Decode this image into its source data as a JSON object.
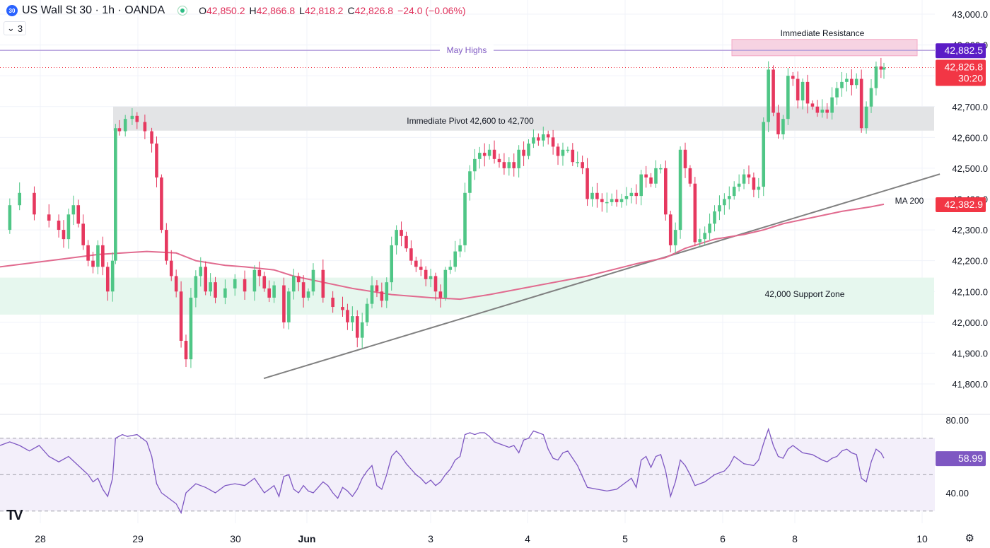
{
  "header": {
    "symbol_badge": "30",
    "title": "US Wall St 30 · 1h · OANDA",
    "open_label": "O",
    "open": "42,850.2",
    "high_label": "H",
    "high": "42,866.8",
    "low_label": "L",
    "low": "42,818.2",
    "close_label": "C",
    "close": "42,826.8",
    "change": "−24.0 (−0.06%)",
    "indicator_count": "3"
  },
  "colors": {
    "up": "#4fc686",
    "down": "#e6385f",
    "ma": "#e16b8f",
    "rsi": "#7e57c2",
    "support_zone": "#e6f7ee",
    "pivot_zone": "#e3e4e6",
    "resistance_zone": "#f7d3e2",
    "trendline": "#808080",
    "price_badge": "#f23645",
    "may_high_badge": "#5b1cc6",
    "rsi_badge": "#7e57c2"
  },
  "chart_data": {
    "type": "candlestick",
    "symbol": "US Wall St 30",
    "interval": "1h",
    "y_axis": {
      "min": 41700,
      "max": 43000,
      "tick_labels": [
        "43,000.0",
        "42,900.0",
        "42,700.0",
        "42,600.0",
        "42,500.0",
        "42,400.0",
        "42,300.0",
        "42,200.0",
        "42,100.0",
        "42,000.0",
        "41,900.0",
        "41,800.0"
      ]
    },
    "x_axis": {
      "tick_labels": [
        "28",
        "29",
        "30",
        "Jun",
        "3",
        "4",
        "5",
        "6",
        "8",
        "10"
      ]
    },
    "zones": [
      {
        "label": "Immediate Resistance",
        "from": 42865,
        "to": 42918
      },
      {
        "label": "Immediate Pivot 42,600 to 42,700",
        "from": 42622,
        "to": 42700
      },
      {
        "label": "42,000 Support Zone",
        "from": 42025,
        "to": 42145
      }
    ],
    "lines": [
      {
        "label": "May Highs",
        "value": 42882.5,
        "badge": "42,882.5"
      },
      {
        "label": "MA 200",
        "badge": "42,382.9"
      }
    ],
    "last_price": {
      "value": 42826.8,
      "badge": "42,826.8",
      "countdown": "30:20"
    },
    "trendline": {
      "from": [
        0.265,
        41818
      ],
      "to": [
        0.944,
        42481
      ]
    },
    "close_path": [
      [
        0.0,
        42300
      ],
      [
        0.01,
        42380
      ],
      [
        0.02,
        42420
      ],
      [
        0.035,
        42350
      ],
      [
        0.05,
        42330
      ],
      [
        0.06,
        42300
      ],
      [
        0.065,
        42270
      ],
      [
        0.07,
        42350
      ],
      [
        0.075,
        42380
      ],
      [
        0.08,
        42320
      ],
      [
        0.085,
        42250
      ],
      [
        0.09,
        42200
      ],
      [
        0.095,
        42180
      ],
      [
        0.1,
        42250
      ],
      [
        0.105,
        42180
      ],
      [
        0.11,
        42100
      ],
      [
        0.115,
        42200
      ],
      [
        0.118,
        42630
      ],
      [
        0.122,
        42620
      ],
      [
        0.128,
        42660
      ],
      [
        0.135,
        42670
      ],
      [
        0.14,
        42650
      ],
      [
        0.148,
        42620
      ],
      [
        0.155,
        42580
      ],
      [
        0.16,
        42470
      ],
      [
        0.165,
        42300
      ],
      [
        0.17,
        42200
      ],
      [
        0.175,
        42150
      ],
      [
        0.18,
        42100
      ],
      [
        0.185,
        41940
      ],
      [
        0.19,
        41880
      ],
      [
        0.195,
        42080
      ],
      [
        0.2,
        42150
      ],
      [
        0.205,
        42180
      ],
      [
        0.21,
        42100
      ],
      [
        0.215,
        42130
      ],
      [
        0.22,
        42080
      ],
      [
        0.23,
        42110
      ],
      [
        0.24,
        42140
      ],
      [
        0.25,
        42100
      ],
      [
        0.26,
        42170
      ],
      [
        0.265,
        42150
      ],
      [
        0.27,
        42110
      ],
      [
        0.275,
        42080
      ],
      [
        0.28,
        42120
      ],
      [
        0.29,
        42000
      ],
      [
        0.295,
        42100
      ],
      [
        0.3,
        42150
      ],
      [
        0.305,
        42130
      ],
      [
        0.31,
        42080
      ],
      [
        0.315,
        42100
      ],
      [
        0.32,
        42170
      ],
      [
        0.33,
        42080
      ],
      [
        0.34,
        42050
      ],
      [
        0.35,
        42040
      ],
      [
        0.355,
        42000
      ],
      [
        0.36,
        42020
      ],
      [
        0.365,
        41950
      ],
      [
        0.37,
        42000
      ],
      [
        0.375,
        42060
      ],
      [
        0.38,
        42120
      ],
      [
        0.385,
        42100
      ],
      [
        0.39,
        42070
      ],
      [
        0.395,
        42130
      ],
      [
        0.4,
        42250
      ],
      [
        0.405,
        42300
      ],
      [
        0.41,
        42280
      ],
      [
        0.415,
        42240
      ],
      [
        0.42,
        42200
      ],
      [
        0.425,
        42180
      ],
      [
        0.43,
        42170
      ],
      [
        0.435,
        42140
      ],
      [
        0.44,
        42150
      ],
      [
        0.445,
        42100
      ],
      [
        0.45,
        42080
      ],
      [
        0.455,
        42170
      ],
      [
        0.46,
        42180
      ],
      [
        0.465,
        42230
      ],
      [
        0.47,
        42250
      ],
      [
        0.475,
        42420
      ],
      [
        0.48,
        42490
      ],
      [
        0.485,
        42530
      ],
      [
        0.49,
        42550
      ],
      [
        0.495,
        42540
      ],
      [
        0.5,
        42560
      ],
      [
        0.505,
        42530
      ],
      [
        0.51,
        42520
      ],
      [
        0.515,
        42500
      ],
      [
        0.52,
        42520
      ],
      [
        0.525,
        42500
      ],
      [
        0.53,
        42560
      ],
      [
        0.535,
        42540
      ],
      [
        0.54,
        42580
      ],
      [
        0.545,
        42600
      ],
      [
        0.55,
        42590
      ],
      [
        0.555,
        42610
      ],
      [
        0.56,
        42600
      ],
      [
        0.565,
        42570
      ],
      [
        0.57,
        42540
      ],
      [
        0.575,
        42560
      ],
      [
        0.58,
        42560
      ],
      [
        0.585,
        42520
      ],
      [
        0.59,
        42520
      ],
      [
        0.595,
        42500
      ],
      [
        0.6,
        42400
      ],
      [
        0.605,
        42420
      ],
      [
        0.61,
        42400
      ],
      [
        0.615,
        42390
      ],
      [
        0.62,
        42390
      ],
      [
        0.625,
        42400
      ],
      [
        0.63,
        42390
      ],
      [
        0.635,
        42400
      ],
      [
        0.64,
        42410
      ],
      [
        0.645,
        42420
      ],
      [
        0.65,
        42410
      ],
      [
        0.655,
        42480
      ],
      [
        0.66,
        42470
      ],
      [
        0.665,
        42450
      ],
      [
        0.67,
        42500
      ],
      [
        0.675,
        42500
      ],
      [
        0.68,
        42350
      ],
      [
        0.685,
        42250
      ],
      [
        0.69,
        42300
      ],
      [
        0.695,
        42560
      ],
      [
        0.7,
        42500
      ],
      [
        0.705,
        42450
      ],
      [
        0.71,
        42260
      ],
      [
        0.715,
        42270
      ],
      [
        0.72,
        42290
      ],
      [
        0.725,
        42320
      ],
      [
        0.73,
        42360
      ],
      [
        0.735,
        42380
      ],
      [
        0.74,
        42400
      ],
      [
        0.745,
        42410
      ],
      [
        0.75,
        42440
      ],
      [
        0.755,
        42450
      ],
      [
        0.76,
        42480
      ],
      [
        0.765,
        42470
      ],
      [
        0.77,
        42430
      ],
      [
        0.775,
        42440
      ],
      [
        0.78,
        42650
      ],
      [
        0.785,
        42820
      ],
      [
        0.79,
        42680
      ],
      [
        0.795,
        42610
      ],
      [
        0.8,
        42660
      ],
      [
        0.805,
        42800
      ],
      [
        0.81,
        42790
      ],
      [
        0.815,
        42720
      ],
      [
        0.82,
        42780
      ],
      [
        0.825,
        42710
      ],
      [
        0.83,
        42700
      ],
      [
        0.835,
        42680
      ],
      [
        0.84,
        42690
      ],
      [
        0.845,
        42680
      ],
      [
        0.85,
        42730
      ],
      [
        0.855,
        42760
      ],
      [
        0.86,
        42780
      ],
      [
        0.865,
        42790
      ],
      [
        0.87,
        42770
      ],
      [
        0.875,
        42790
      ],
      [
        0.88,
        42630
      ],
      [
        0.885,
        42700
      ],
      [
        0.89,
        42760
      ],
      [
        0.895,
        42830
      ],
      [
        0.9,
        42820
      ],
      [
        0.903,
        42827
      ]
    ],
    "ma200_path": [
      [
        0.0,
        42180
      ],
      [
        0.05,
        42200
      ],
      [
        0.1,
        42220
      ],
      [
        0.15,
        42230
      ],
      [
        0.18,
        42225
      ],
      [
        0.2,
        42200
      ],
      [
        0.23,
        42185
      ],
      [
        0.25,
        42180
      ],
      [
        0.28,
        42170
      ],
      [
        0.3,
        42150
      ],
      [
        0.33,
        42130
      ],
      [
        0.36,
        42110
      ],
      [
        0.4,
        42090
      ],
      [
        0.44,
        42080
      ],
      [
        0.47,
        42075
      ],
      [
        0.5,
        42090
      ],
      [
        0.55,
        42120
      ],
      [
        0.6,
        42150
      ],
      [
        0.65,
        42190
      ],
      [
        0.68,
        42210
      ],
      [
        0.7,
        42240
      ],
      [
        0.73,
        42270
      ],
      [
        0.76,
        42285
      ],
      [
        0.78,
        42300
      ],
      [
        0.8,
        42320
      ],
      [
        0.83,
        42340
      ],
      [
        0.86,
        42360
      ],
      [
        0.89,
        42375
      ],
      [
        0.903,
        42383
      ]
    ],
    "rsi": {
      "y_axis": {
        "min": 30,
        "max": 85,
        "tick_labels": [
          "80.00",
          "40.00"
        ]
      },
      "bands": {
        "upper": 70,
        "middle": 50,
        "lower": 30
      },
      "current_badge": "58.99",
      "series": [
        [
          0.0,
          66
        ],
        [
          0.01,
          68
        ],
        [
          0.02,
          66
        ],
        [
          0.03,
          63
        ],
        [
          0.04,
          66
        ],
        [
          0.05,
          60
        ],
        [
          0.06,
          57
        ],
        [
          0.07,
          60
        ],
        [
          0.08,
          55
        ],
        [
          0.09,
          50
        ],
        [
          0.095,
          46
        ],
        [
          0.1,
          48
        ],
        [
          0.105,
          42
        ],
        [
          0.11,
          38
        ],
        [
          0.115,
          48
        ],
        [
          0.118,
          70
        ],
        [
          0.125,
          72
        ],
        [
          0.13,
          71
        ],
        [
          0.14,
          72
        ],
        [
          0.15,
          68
        ],
        [
          0.155,
          60
        ],
        [
          0.16,
          45
        ],
        [
          0.165,
          40
        ],
        [
          0.17,
          38
        ],
        [
          0.18,
          34
        ],
        [
          0.185,
          29
        ],
        [
          0.19,
          40
        ],
        [
          0.2,
          45
        ],
        [
          0.21,
          43
        ],
        [
          0.22,
          40
        ],
        [
          0.23,
          44
        ],
        [
          0.24,
          45
        ],
        [
          0.25,
          44
        ],
        [
          0.26,
          48
        ],
        [
          0.265,
          44
        ],
        [
          0.27,
          40
        ],
        [
          0.28,
          44
        ],
        [
          0.285,
          38
        ],
        [
          0.29,
          49
        ],
        [
          0.295,
          50
        ],
        [
          0.3,
          42
        ],
        [
          0.305,
          40
        ],
        [
          0.31,
          44
        ],
        [
          0.315,
          41
        ],
        [
          0.32,
          40
        ],
        [
          0.325,
          43
        ],
        [
          0.33,
          46
        ],
        [
          0.335,
          44
        ],
        [
          0.34,
          40
        ],
        [
          0.345,
          37
        ],
        [
          0.35,
          43
        ],
        [
          0.355,
          41
        ],
        [
          0.36,
          38
        ],
        [
          0.365,
          42
        ],
        [
          0.37,
          48
        ],
        [
          0.375,
          52
        ],
        [
          0.38,
          55
        ],
        [
          0.385,
          44
        ],
        [
          0.39,
          42
        ],
        [
          0.395,
          50
        ],
        [
          0.4,
          60
        ],
        [
          0.405,
          63
        ],
        [
          0.41,
          60
        ],
        [
          0.415,
          56
        ],
        [
          0.42,
          53
        ],
        [
          0.425,
          50
        ],
        [
          0.43,
          48
        ],
        [
          0.435,
          45
        ],
        [
          0.44,
          47
        ],
        [
          0.445,
          44
        ],
        [
          0.45,
          46
        ],
        [
          0.455,
          50
        ],
        [
          0.46,
          53
        ],
        [
          0.465,
          58
        ],
        [
          0.47,
          60
        ],
        [
          0.475,
          72
        ],
        [
          0.48,
          73
        ],
        [
          0.485,
          72
        ],
        [
          0.49,
          73
        ],
        [
          0.495,
          73
        ],
        [
          0.5,
          71
        ],
        [
          0.505,
          68
        ],
        [
          0.51,
          67
        ],
        [
          0.52,
          65
        ],
        [
          0.525,
          66
        ],
        [
          0.53,
          62
        ],
        [
          0.535,
          69
        ],
        [
          0.54,
          70
        ],
        [
          0.545,
          74
        ],
        [
          0.55,
          73
        ],
        [
          0.555,
          72
        ],
        [
          0.56,
          64
        ],
        [
          0.565,
          59
        ],
        [
          0.57,
          58
        ],
        [
          0.575,
          62
        ],
        [
          0.58,
          63
        ],
        [
          0.585,
          59
        ],
        [
          0.59,
          55
        ],
        [
          0.595,
          49
        ],
        [
          0.6,
          43
        ],
        [
          0.61,
          42
        ],
        [
          0.62,
          41
        ],
        [
          0.63,
          42
        ],
        [
          0.64,
          46
        ],
        [
          0.645,
          48
        ],
        [
          0.65,
          43
        ],
        [
          0.655,
          58
        ],
        [
          0.66,
          60
        ],
        [
          0.665,
          54
        ],
        [
          0.67,
          60
        ],
        [
          0.675,
          61
        ],
        [
          0.68,
          52
        ],
        [
          0.685,
          38
        ],
        [
          0.69,
          46
        ],
        [
          0.695,
          58
        ],
        [
          0.7,
          55
        ],
        [
          0.705,
          50
        ],
        [
          0.71,
          44
        ],
        [
          0.72,
          46
        ],
        [
          0.725,
          48
        ],
        [
          0.73,
          50
        ],
        [
          0.74,
          52
        ],
        [
          0.745,
          55
        ],
        [
          0.75,
          60
        ],
        [
          0.755,
          58
        ],
        [
          0.76,
          56
        ],
        [
          0.77,
          55
        ],
        [
          0.775,
          58
        ],
        [
          0.78,
          67
        ],
        [
          0.785,
          75
        ],
        [
          0.79,
          66
        ],
        [
          0.795,
          60
        ],
        [
          0.8,
          59
        ],
        [
          0.805,
          64
        ],
        [
          0.81,
          66
        ],
        [
          0.815,
          64
        ],
        [
          0.82,
          62
        ],
        [
          0.83,
          61
        ],
        [
          0.84,
          58
        ],
        [
          0.845,
          57
        ],
        [
          0.85,
          59
        ],
        [
          0.855,
          60
        ],
        [
          0.86,
          63
        ],
        [
          0.865,
          64
        ],
        [
          0.87,
          62
        ],
        [
          0.875,
          61
        ],
        [
          0.88,
          48
        ],
        [
          0.885,
          46
        ],
        [
          0.89,
          57
        ],
        [
          0.895,
          64
        ],
        [
          0.9,
          62
        ],
        [
          0.903,
          59
        ]
      ]
    }
  }
}
